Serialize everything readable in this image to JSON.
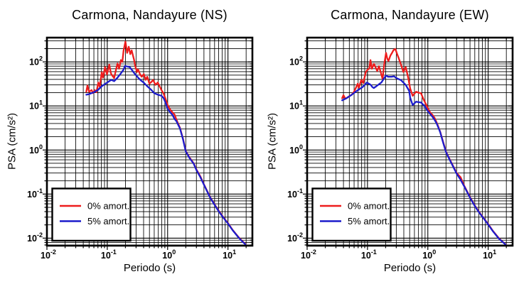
{
  "figure": {
    "background": "#ffffff",
    "axis_color": "#000000",
    "grid_color": "#000000",
    "series_colors": {
      "red": "#ee1c1c",
      "blue": "#1c1ccc"
    }
  },
  "legend": {
    "items": [
      {
        "label": "0% amort.",
        "color": "#ee1c1c"
      },
      {
        "label": "5% amort.",
        "color": "#1c1ccc"
      }
    ],
    "position": "lower-left"
  },
  "chart_data": [
    {
      "type": "line",
      "title": "Carmona, Nandayure (NS)",
      "xlabel": "Periodo (s)",
      "ylabel": "PSA (cm/s²)",
      "xscale": "log",
      "yscale": "log",
      "xlim": [
        0.01,
        25.4
      ],
      "ylim": [
        0.00675,
        355
      ],
      "grid": "log-major-and-minor",
      "xticks": [
        {
          "v": 0.01,
          "base": "10",
          "exp": "-2"
        },
        {
          "v": 0.1,
          "base": "10",
          "exp": "-1"
        },
        {
          "v": 1,
          "base": "10",
          "exp": "0"
        },
        {
          "v": 10,
          "base": "10",
          "exp": "1"
        }
      ],
      "yticks": [
        {
          "v": 100,
          "base": "10",
          "exp": "2"
        },
        {
          "v": 10,
          "base": "10",
          "exp": "1"
        },
        {
          "v": 1,
          "base": "10",
          "exp": "0"
        },
        {
          "v": 0.1,
          "base": "10",
          "exp": "-1"
        },
        {
          "v": 0.01,
          "base": "10",
          "exp": "-2"
        }
      ],
      "series": [
        {
          "name": "0% amort.",
          "color": "#ee1c1c",
          "points": [
            [
              0.045,
              21
            ],
            [
              0.047,
              29
            ],
            [
              0.05,
              21
            ],
            [
              0.055,
              23
            ],
            [
              0.058,
              19.5
            ],
            [
              0.062,
              23
            ],
            [
              0.066,
              20.5
            ],
            [
              0.071,
              34
            ],
            [
              0.075,
              27
            ],
            [
              0.081,
              58
            ],
            [
              0.085,
              44
            ],
            [
              0.092,
              76
            ],
            [
              0.099,
              52
            ],
            [
              0.108,
              87
            ],
            [
              0.115,
              55
            ],
            [
              0.122,
              48
            ],
            [
              0.13,
              43
            ],
            [
              0.14,
              68
            ],
            [
              0.148,
              92
            ],
            [
              0.157,
              70
            ],
            [
              0.168,
              110
            ],
            [
              0.178,
              100
            ],
            [
              0.186,
              180
            ],
            [
              0.2,
              288
            ],
            [
              0.207,
              210
            ],
            [
              0.213,
              160
            ],
            [
              0.227,
              221
            ],
            [
              0.24,
              150
            ],
            [
              0.254,
              182
            ],
            [
              0.278,
              111
            ],
            [
              0.29,
              81
            ],
            [
              0.312,
              59
            ],
            [
              0.324,
              67
            ],
            [
              0.35,
              52
            ],
            [
              0.372,
              46
            ],
            [
              0.404,
              53
            ],
            [
              0.433,
              39
            ],
            [
              0.46,
              46
            ],
            [
              0.5,
              32
            ],
            [
              0.54,
              35
            ],
            [
              0.575,
              39
            ],
            [
              0.63,
              30
            ],
            [
              0.687,
              34
            ],
            [
              0.79,
              23
            ],
            [
              0.86,
              19
            ],
            [
              0.93,
              14
            ],
            [
              1.0,
              10.5
            ],
            [
              1.1,
              8.3
            ],
            [
              1.2,
              7.2
            ],
            [
              1.3,
              6.4
            ],
            [
              1.4,
              4.9
            ],
            [
              1.5,
              3.9
            ],
            [
              1.6,
              3.2
            ],
            [
              1.8,
              1.8
            ],
            [
              2.0,
              0.95
            ],
            [
              2.3,
              0.68
            ],
            [
              2.7,
              0.5
            ],
            [
              3.0,
              0.36
            ],
            [
              3.5,
              0.25
            ],
            [
              4.0,
              0.165
            ],
            [
              5.0,
              0.088
            ],
            [
              6.0,
              0.058
            ],
            [
              7.0,
              0.042
            ],
            [
              8.5,
              0.029
            ],
            [
              10,
              0.022
            ],
            [
              12,
              0.0152
            ],
            [
              15,
              0.0105
            ],
            [
              17,
              0.0088
            ],
            [
              19.5,
              0.0073
            ]
          ]
        },
        {
          "name": "5% amort.",
          "color": "#1c1ccc",
          "points": [
            [
              0.045,
              18
            ],
            [
              0.05,
              18.5
            ],
            [
              0.06,
              20.5
            ],
            [
              0.07,
              23
            ],
            [
              0.081,
              28
            ],
            [
              0.09,
              31
            ],
            [
              0.1,
              34
            ],
            [
              0.116,
              39
            ],
            [
              0.13,
              36.5
            ],
            [
              0.148,
              44
            ],
            [
              0.17,
              56
            ],
            [
              0.185,
              66
            ],
            [
              0.197,
              81
            ],
            [
              0.21,
              79
            ],
            [
              0.235,
              76
            ],
            [
              0.255,
              66
            ],
            [
              0.278,
              56
            ],
            [
              0.324,
              44
            ],
            [
              0.36,
              38
            ],
            [
              0.4,
              34
            ],
            [
              0.46,
              28
            ],
            [
              0.53,
              23.5
            ],
            [
              0.6,
              19.5
            ],
            [
              0.69,
              18
            ],
            [
              0.79,
              17
            ],
            [
              0.86,
              15
            ],
            [
              0.93,
              11.5
            ],
            [
              1.0,
              8.6
            ],
            [
              1.1,
              7.2
            ],
            [
              1.2,
              6.3
            ],
            [
              1.3,
              5.1
            ],
            [
              1.4,
              4.5
            ],
            [
              1.5,
              3.7
            ],
            [
              1.6,
              3.1
            ],
            [
              1.8,
              1.75
            ],
            [
              2.0,
              0.93
            ],
            [
              2.3,
              0.66
            ],
            [
              2.7,
              0.49
            ],
            [
              3.0,
              0.35
            ],
            [
              3.5,
              0.24
            ],
            [
              4.0,
              0.162
            ],
            [
              5.0,
              0.086
            ],
            [
              6.0,
              0.057
            ],
            [
              7.0,
              0.041
            ],
            [
              8.5,
              0.0285
            ],
            [
              10,
              0.0215
            ],
            [
              12,
              0.015
            ],
            [
              15,
              0.0103
            ],
            [
              17,
              0.0086
            ],
            [
              19.5,
              0.0072
            ]
          ]
        }
      ]
    },
    {
      "type": "line",
      "title": "Carmona, Nandayure (EW)",
      "xlabel": "Periodo (s)",
      "ylabel": "PSA (cm/s²)",
      "xscale": "log",
      "yscale": "log",
      "xlim": [
        0.01,
        25.4
      ],
      "ylim": [
        0.00675,
        355
      ],
      "grid": "log-major-and-minor",
      "xticks": [
        {
          "v": 0.01,
          "base": "10",
          "exp": "-2"
        },
        {
          "v": 0.1,
          "base": "10",
          "exp": "-1"
        },
        {
          "v": 1,
          "base": "10",
          "exp": "0"
        },
        {
          "v": 10,
          "base": "10",
          "exp": "1"
        }
      ],
      "yticks": [
        {
          "v": 100,
          "base": "10",
          "exp": "2"
        },
        {
          "v": 10,
          "base": "10",
          "exp": "1"
        },
        {
          "v": 1,
          "base": "10",
          "exp": "0"
        },
        {
          "v": 0.1,
          "base": "10",
          "exp": "-1"
        },
        {
          "v": 0.01,
          "base": "10",
          "exp": "-2"
        }
      ],
      "series": [
        {
          "name": "0% amort.",
          "color": "#ee1c1c",
          "points": [
            [
              0.038,
              15
            ],
            [
              0.04,
              17.5
            ],
            [
              0.043,
              14.5
            ],
            [
              0.048,
              16
            ],
            [
              0.055,
              18
            ],
            [
              0.06,
              21
            ],
            [
              0.066,
              28
            ],
            [
              0.069,
              32
            ],
            [
              0.072,
              26
            ],
            [
              0.079,
              39
            ],
            [
              0.085,
              33
            ],
            [
              0.094,
              59
            ],
            [
              0.1,
              66
            ],
            [
              0.107,
              71
            ],
            [
              0.112,
              110
            ],
            [
              0.118,
              70
            ],
            [
              0.128,
              90
            ],
            [
              0.138,
              72
            ],
            [
              0.145,
              62
            ],
            [
              0.155,
              80
            ],
            [
              0.165,
              60
            ],
            [
              0.178,
              41
            ],
            [
              0.19,
              90
            ],
            [
              0.203,
              160
            ],
            [
              0.212,
              120
            ],
            [
              0.222,
              104
            ],
            [
              0.24,
              140
            ],
            [
              0.255,
              160
            ],
            [
              0.27,
              185
            ],
            [
              0.29,
              197
            ],
            [
              0.31,
              150
            ],
            [
              0.33,
              120
            ],
            [
              0.36,
              86
            ],
            [
              0.394,
              59
            ],
            [
              0.43,
              76
            ],
            [
              0.47,
              46
            ],
            [
              0.51,
              25
            ],
            [
              0.56,
              17
            ],
            [
              0.64,
              21
            ],
            [
              0.7,
              20
            ],
            [
              0.77,
              19.5
            ],
            [
              0.85,
              14
            ],
            [
              0.93,
              11
            ],
            [
              1.0,
              8.9
            ],
            [
              1.1,
              7.0
            ],
            [
              1.2,
              6.2
            ],
            [
              1.3,
              5.3
            ],
            [
              1.4,
              4.2
            ],
            [
              1.5,
              3.3
            ],
            [
              1.6,
              2.6
            ],
            [
              1.8,
              1.5
            ],
            [
              2.0,
              0.92
            ],
            [
              2.3,
              0.62
            ],
            [
              2.7,
              0.4
            ],
            [
              3.0,
              0.3
            ],
            [
              3.5,
              0.24
            ],
            [
              4.0,
              0.155
            ],
            [
              5.0,
              0.085
            ],
            [
              6.0,
              0.055
            ],
            [
              7.0,
              0.04
            ],
            [
              8.5,
              0.028
            ],
            [
              10,
              0.021
            ],
            [
              12,
              0.0145
            ],
            [
              15,
              0.01
            ],
            [
              17,
              0.0085
            ],
            [
              19.5,
              0.0072
            ]
          ]
        },
        {
          "name": "5% amort.",
          "color": "#1c1ccc",
          "points": [
            [
              0.038,
              13.4
            ],
            [
              0.045,
              15
            ],
            [
              0.055,
              18
            ],
            [
              0.065,
              21.5
            ],
            [
              0.075,
              24.5
            ],
            [
              0.082,
              26.5
            ],
            [
              0.09,
              30
            ],
            [
              0.098,
              34
            ],
            [
              0.105,
              32
            ],
            [
              0.112,
              30.5
            ],
            [
              0.12,
              27
            ],
            [
              0.127,
              25.5
            ],
            [
              0.14,
              28
            ],
            [
              0.155,
              31
            ],
            [
              0.17,
              34
            ],
            [
              0.185,
              41
            ],
            [
              0.203,
              49
            ],
            [
              0.22,
              46
            ],
            [
              0.25,
              46
            ],
            [
              0.276,
              47
            ],
            [
              0.3,
              43
            ],
            [
              0.36,
              38.5
            ],
            [
              0.43,
              30
            ],
            [
              0.49,
              22
            ],
            [
              0.51,
              15.5
            ],
            [
              0.56,
              10.5
            ],
            [
              0.64,
              12.5
            ],
            [
              0.7,
              12.2
            ],
            [
              0.77,
              12
            ],
            [
              0.85,
              10.5
            ],
            [
              0.93,
              9
            ],
            [
              1.0,
              7.6
            ],
            [
              1.1,
              6.5
            ],
            [
              1.2,
              5.6
            ],
            [
              1.3,
              4.8
            ],
            [
              1.4,
              4.0
            ],
            [
              1.5,
              3.2
            ],
            [
              1.6,
              2.55
            ],
            [
              1.8,
              1.45
            ],
            [
              2.0,
              0.9
            ],
            [
              2.3,
              0.6
            ],
            [
              2.7,
              0.39
            ],
            [
              3.0,
              0.29
            ],
            [
              3.5,
              0.21
            ],
            [
              4.0,
              0.15
            ],
            [
              5.0,
              0.083
            ],
            [
              6.0,
              0.054
            ],
            [
              7.0,
              0.039
            ],
            [
              8.5,
              0.0275
            ],
            [
              10,
              0.0205
            ],
            [
              12,
              0.0143
            ],
            [
              15,
              0.0098
            ],
            [
              17,
              0.0084
            ],
            [
              19.5,
              0.0071
            ]
          ]
        }
      ]
    }
  ]
}
